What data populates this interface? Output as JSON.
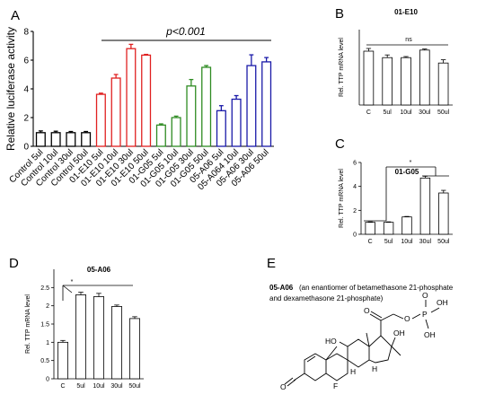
{
  "figure": {
    "panels": [
      {
        "letter": "A"
      },
      {
        "letter": "B"
      },
      {
        "letter": "C"
      },
      {
        "letter": "D"
      },
      {
        "letter": "E"
      }
    ]
  },
  "chart_data": [
    {
      "panel": "A",
      "type": "bar",
      "title": "",
      "ylabel": "Relative luciferase activity",
      "xlabel": "",
      "ylim": [
        0,
        8
      ],
      "yticks": [
        0,
        2,
        4,
        6,
        8
      ],
      "annotation": "p<0.001",
      "categories": [
        "Control 5ul",
        "Control 10ul",
        "Control 30ul",
        "Control 50ul",
        "01-E10 5ul",
        "01-E10 10ul",
        "01-E10 30ul",
        "01-E10 50ul",
        "01-G05 5ul",
        "01-G05 10ul",
        "01-G05 30ul",
        "01-G05 50ul",
        "05-A06 5ul",
        "05-A064 10ul",
        "05-A06 30ul",
        "05-A06 50ul"
      ],
      "values": [
        0.95,
        0.95,
        0.95,
        0.95,
        3.62,
        4.75,
        6.8,
        6.35,
        1.48,
        2.0,
        4.2,
        5.5,
        2.48,
        3.28,
        5.62,
        5.88
      ],
      "errors": [
        0.12,
        0.1,
        0.08,
        0.08,
        0.08,
        0.25,
        0.3,
        0.05,
        0.08,
        0.1,
        0.45,
        0.12,
        0.35,
        0.25,
        0.75,
        0.3
      ],
      "colors": [
        "#000000",
        "#000000",
        "#000000",
        "#000000",
        "#e02020",
        "#e02020",
        "#e02020",
        "#e02020",
        "#2e8b22",
        "#2e8b22",
        "#2e8b22",
        "#2e8b22",
        "#1a1aa8",
        "#1a1aa8",
        "#1a1aa8",
        "#1a1aa8"
      ],
      "grid": false
    },
    {
      "panel": "B",
      "type": "bar",
      "title": "01-E10",
      "ylabel": "Rel. TTP mRNA level",
      "xlabel": "",
      "ylim": [
        0,
        1.4
      ],
      "yticks": [],
      "annotation": "ns",
      "categories": [
        "C",
        "5ul",
        "10ul",
        "30ul",
        "50ul"
      ],
      "values": [
        1.0,
        0.88,
        0.88,
        1.02,
        0.78
      ],
      "errors": [
        0.05,
        0.05,
        0.02,
        0.02,
        0.06
      ],
      "grid": false
    },
    {
      "panel": "C",
      "type": "bar",
      "title": "01-G05",
      "ylabel": "Rel. TTP mRNA level",
      "xlabel": "",
      "ylim": [
        0,
        6
      ],
      "yticks": [
        0,
        2,
        4,
        6
      ],
      "annotation": "*",
      "categories": [
        "C",
        "5ul",
        "10ul",
        "30ul",
        "50ul"
      ],
      "values": [
        1.0,
        1.0,
        1.45,
        4.7,
        3.45
      ],
      "errors": [
        0.04,
        0.04,
        0.04,
        0.15,
        0.22
      ],
      "grid": false
    },
    {
      "panel": "D",
      "type": "bar",
      "title": "05-A06",
      "ylabel": "Rel. TTP mRNA level",
      "xlabel": "",
      "ylim": [
        0,
        3
      ],
      "yticks": [
        0,
        0.5,
        1,
        1.5,
        2,
        2.5
      ],
      "annotation": "*",
      "categories": [
        "C",
        "5ul",
        "10ul",
        "30ul",
        "50ul"
      ],
      "values": [
        1.0,
        2.3,
        2.25,
        1.98,
        1.65
      ],
      "errors": [
        0.05,
        0.07,
        0.09,
        0.04,
        0.05
      ],
      "grid": false
    }
  ],
  "structure": {
    "title": "05-A06",
    "description_line1": "(an enantiomer of betamethasone 21-phosphate",
    "description_line2": "and dexamethasone 21-phosphate)",
    "atoms": {
      "oh1": "OH",
      "oh2": "OH",
      "p": "P",
      "o1": "O",
      "o2": "O",
      "o3": "O",
      "ho": "HO",
      "oh3": "OH",
      "f": "F",
      "h1": "H",
      "h2": "H",
      "o4": "O"
    }
  }
}
